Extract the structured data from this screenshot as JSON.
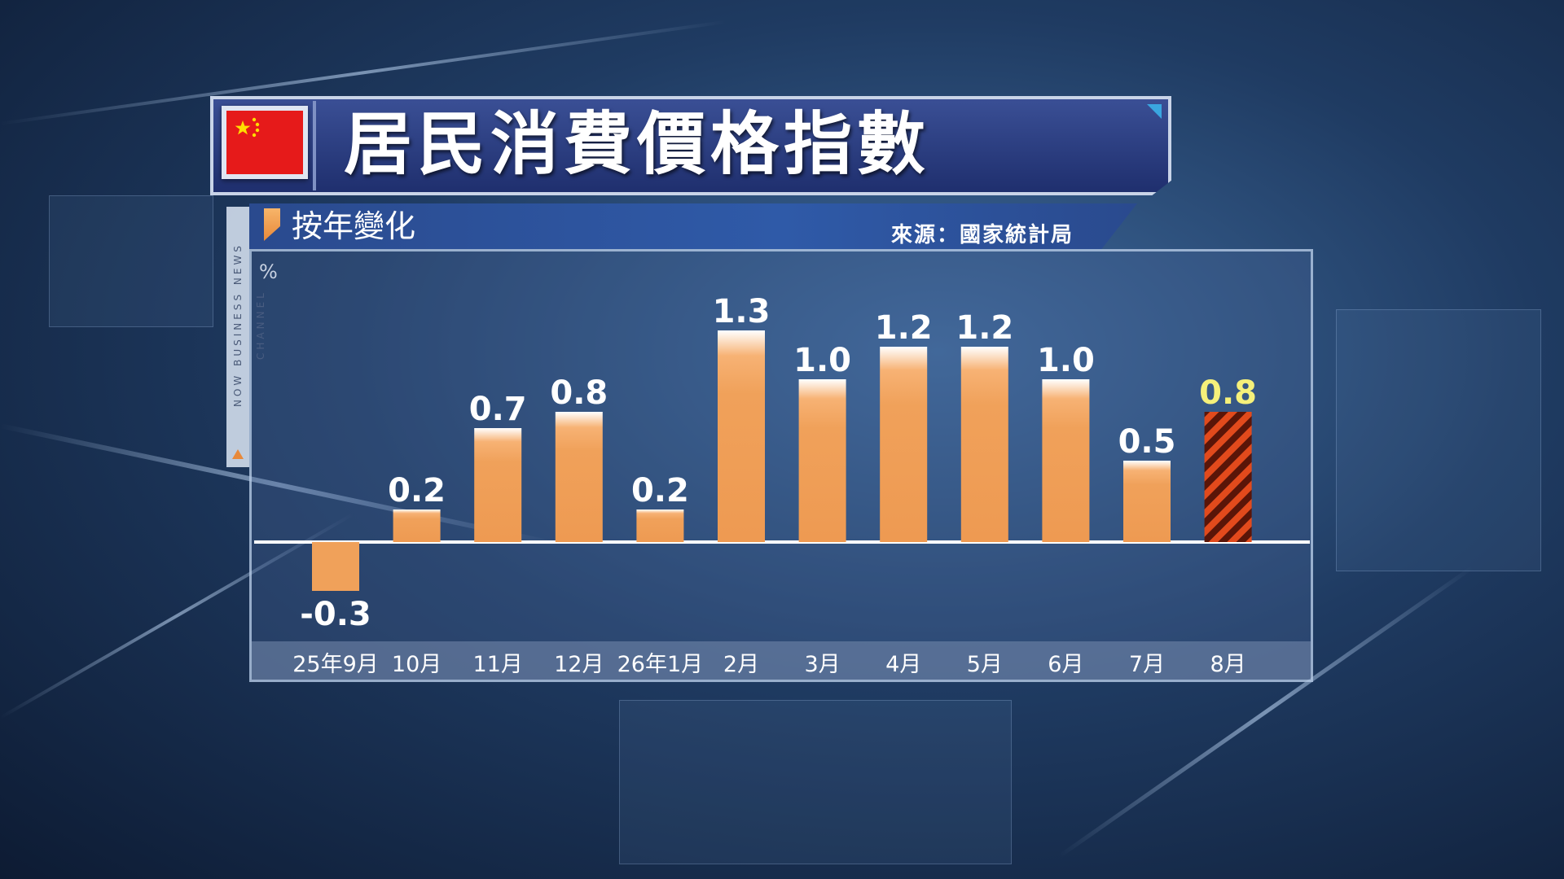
{
  "header": {
    "title": "居民消費價格指數",
    "subtitle": "按年變化",
    "source": "來源：國家統計局",
    "channel": "NOW BUSINESS NEWS CHANNEL"
  },
  "colors": {
    "bar": "#f0a15a",
    "bar_top": "#ffffff",
    "highlight_stripe_a": "#e24a1c",
    "highlight_stripe_b": "#5a1508",
    "highlight_label": "#f5f07a",
    "flag_red": "#e61a1a",
    "flag_star": "#ffde00"
  },
  "chart_data": {
    "type": "bar",
    "title": "居民消費價格指數",
    "subtitle": "按年變化",
    "ylabel": "%",
    "categories": [
      "25年9月",
      "10月",
      "11月",
      "12月",
      "26年1月",
      "2月",
      "3月",
      "4月",
      "5月",
      "6月",
      "7月",
      "8月"
    ],
    "values": [
      -0.3,
      0.2,
      0.7,
      0.8,
      0.2,
      1.3,
      1.0,
      1.2,
      1.2,
      1.0,
      0.5,
      0.8
    ],
    "value_labels": [
      "-0.3",
      "0.2",
      "0.7",
      "0.8",
      "0.2",
      "1.3",
      "1.0",
      "1.2",
      "1.2",
      "1.0",
      "0.5",
      "0.8"
    ],
    "highlight_index": 11,
    "grid": false,
    "legend": "none"
  }
}
